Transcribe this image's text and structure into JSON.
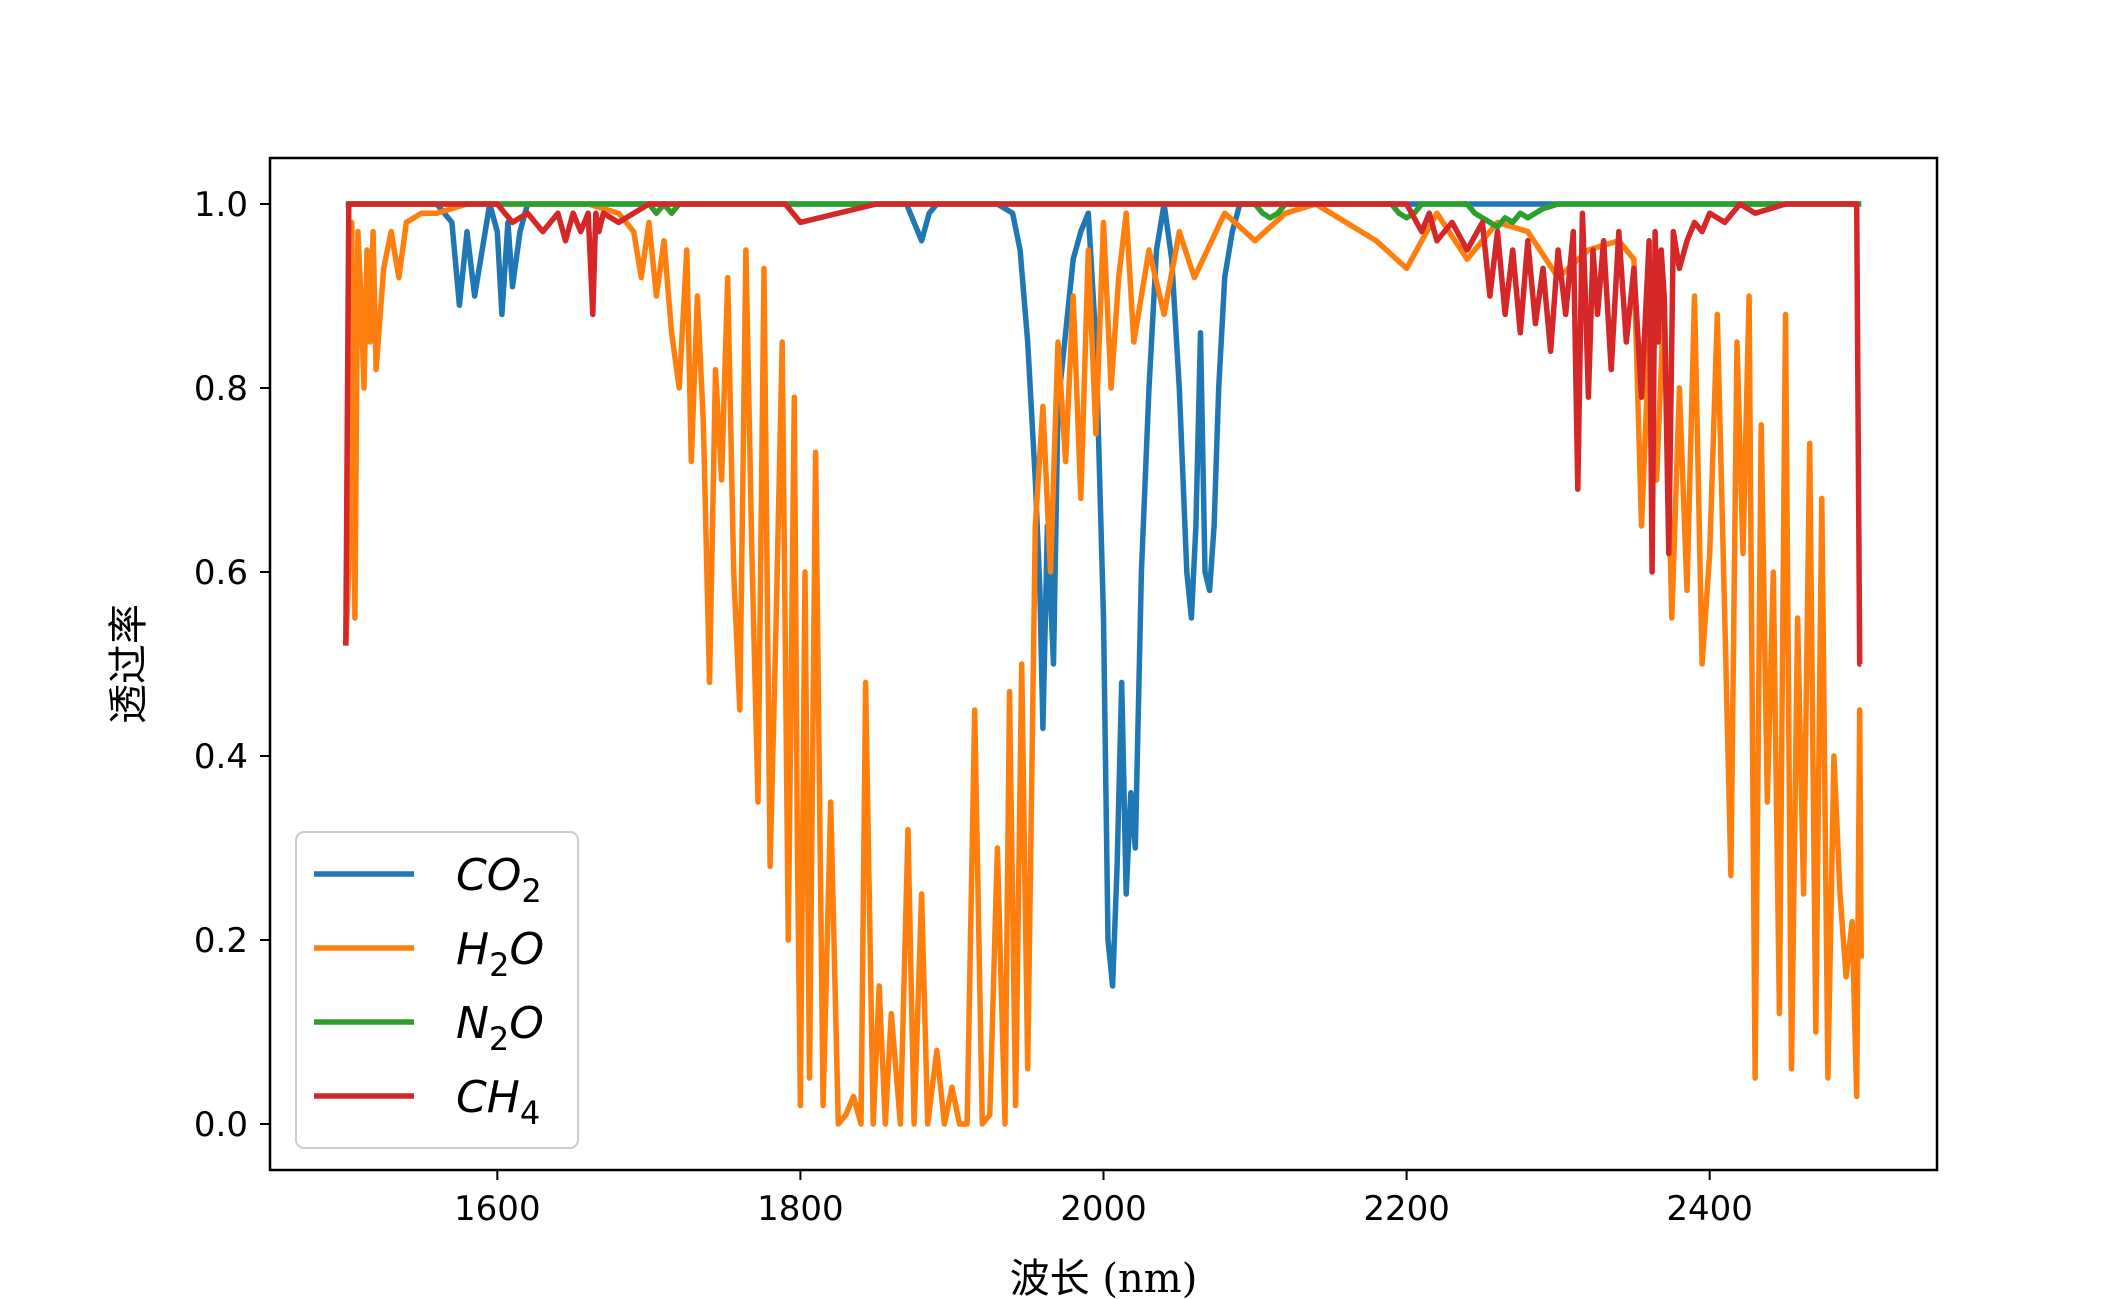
{
  "chart_data": {
    "type": "line",
    "title": "",
    "xlabel": "波长 (nm)",
    "ylabel": "透过率",
    "xlim": [
      1450,
      2550
    ],
    "ylim": [
      -0.05,
      1.05
    ],
    "xticks": [
      {
        "value": 1600,
        "label": "1600"
      },
      {
        "value": 1800,
        "label": "1800"
      },
      {
        "value": 2000,
        "label": "2000"
      },
      {
        "value": 2200,
        "label": "2200"
      },
      {
        "value": 2400,
        "label": "2400"
      }
    ],
    "yticks": [
      {
        "value": 0.0,
        "label": "0.0"
      },
      {
        "value": 0.2,
        "label": "0.2"
      },
      {
        "value": 0.4,
        "label": "0.4"
      },
      {
        "value": 0.6,
        "label": "0.6"
      },
      {
        "value": 0.8,
        "label": "0.8"
      },
      {
        "value": 1.0,
        "label": "1.0"
      }
    ],
    "grid": false,
    "legend_position": "lower-left",
    "series": [
      {
        "name": "CO2",
        "label_main": "CO",
        "label_sub": "2",
        "color": "#1f77b4",
        "x": [
          1500,
          1560,
          1570,
          1575,
          1580,
          1585,
          1590,
          1595,
          1600,
          1603,
          1607,
          1610,
          1615,
          1620,
          1625,
          1700,
          1870,
          1875,
          1880,
          1885,
          1890,
          1930,
          1940,
          1945,
          1950,
          1955,
          1958,
          1960,
          1963,
          1967,
          1970,
          1975,
          1980,
          1985,
          1990,
          1995,
          2000,
          2003,
          2006,
          2009,
          2012,
          2015,
          2018,
          2021,
          2025,
          2030,
          2035,
          2040,
          2045,
          2050,
          2055,
          2058,
          2061,
          2064,
          2067,
          2070,
          2073,
          2076,
          2080,
          2085,
          2090,
          2100,
          2300,
          2500
        ],
        "y": [
          1.0,
          1.0,
          0.98,
          0.89,
          0.97,
          0.9,
          0.95,
          1.0,
          0.97,
          0.88,
          0.98,
          0.91,
          0.97,
          1.0,
          1.0,
          1.0,
          1.0,
          0.98,
          0.96,
          0.99,
          1.0,
          1.0,
          0.99,
          0.95,
          0.85,
          0.7,
          0.58,
          0.43,
          0.65,
          0.5,
          0.78,
          0.86,
          0.94,
          0.97,
          0.99,
          0.85,
          0.55,
          0.2,
          0.15,
          0.28,
          0.48,
          0.25,
          0.36,
          0.3,
          0.6,
          0.8,
          0.95,
          1.0,
          0.94,
          0.8,
          0.6,
          0.55,
          0.65,
          0.86,
          0.6,
          0.58,
          0.65,
          0.8,
          0.92,
          0.97,
          1.0,
          1.0,
          1.0,
          1.0
        ]
      },
      {
        "name": "H2O",
        "label_main": "H",
        "label_sub": "2",
        "label_tail": "O",
        "color": "#ff7f0e",
        "x": [
          1500,
          1502,
          1504,
          1506,
          1508,
          1510,
          1512,
          1514,
          1516,
          1518,
          1520,
          1525,
          1530,
          1535,
          1540,
          1550,
          1560,
          1580,
          1600,
          1620,
          1640,
          1660,
          1680,
          1690,
          1695,
          1700,
          1705,
          1710,
          1715,
          1720,
          1725,
          1728,
          1732,
          1736,
          1740,
          1744,
          1748,
          1752,
          1756,
          1760,
          1764,
          1768,
          1772,
          1776,
          1780,
          1784,
          1788,
          1792,
          1796,
          1798,
          1800,
          1803,
          1806,
          1810,
          1815,
          1820,
          1825,
          1830,
          1835,
          1840,
          1843,
          1848,
          1852,
          1856,
          1860,
          1866,
          1871,
          1875,
          1880,
          1884,
          1890,
          1895,
          1900,
          1905,
          1910,
          1915,
          1920,
          1925,
          1930,
          1935,
          1938,
          1942,
          1946,
          1950,
          1955,
          1960,
          1965,
          1970,
          1975,
          1980,
          1985,
          1990,
          1995,
          2000,
          2005,
          2010,
          2015,
          2020,
          2030,
          2040,
          2050,
          2060,
          2080,
          2100,
          2120,
          2140,
          2160,
          2180,
          2200,
          2220,
          2240,
          2260,
          2280,
          2300,
          2320,
          2340,
          2350,
          2355,
          2360,
          2365,
          2370,
          2375,
          2380,
          2385,
          2390,
          2395,
          2400,
          2405,
          2410,
          2414,
          2418,
          2422,
          2426,
          2430,
          2434,
          2438,
          2442,
          2446,
          2450,
          2454,
          2458,
          2462,
          2466,
          2470,
          2474,
          2478,
          2482,
          2486,
          2490,
          2494,
          2497,
          2499,
          2500
        ],
        "y": [
          0.52,
          0.6,
          0.98,
          0.55,
          0.97,
          0.9,
          0.8,
          0.95,
          0.85,
          0.97,
          0.82,
          0.93,
          0.97,
          0.92,
          0.98,
          0.99,
          0.99,
          1.0,
          1.0,
          1.0,
          1.0,
          1.0,
          0.99,
          0.97,
          0.92,
          0.98,
          0.9,
          0.96,
          0.86,
          0.8,
          0.95,
          0.72,
          0.9,
          0.76,
          0.48,
          0.82,
          0.7,
          0.92,
          0.6,
          0.45,
          0.95,
          0.62,
          0.35,
          0.93,
          0.28,
          0.55,
          0.85,
          0.2,
          0.79,
          0.3,
          0.02,
          0.6,
          0.05,
          0.73,
          0.02,
          0.35,
          0.0,
          0.01,
          0.03,
          0.0,
          0.48,
          0.0,
          0.15,
          0.0,
          0.12,
          0.0,
          0.32,
          0.0,
          0.25,
          0.0,
          0.08,
          0.0,
          0.04,
          0.0,
          0.0,
          0.45,
          0.0,
          0.01,
          0.3,
          0.0,
          0.47,
          0.02,
          0.5,
          0.06,
          0.65,
          0.78,
          0.6,
          0.85,
          0.72,
          0.9,
          0.68,
          0.95,
          0.75,
          0.98,
          0.8,
          0.92,
          0.99,
          0.85,
          0.95,
          0.88,
          0.97,
          0.92,
          0.99,
          0.96,
          0.99,
          1.0,
          0.98,
          0.96,
          0.93,
          0.99,
          0.94,
          0.98,
          0.97,
          0.92,
          0.95,
          0.96,
          0.94,
          0.65,
          0.85,
          0.7,
          0.9,
          0.55,
          0.8,
          0.58,
          0.9,
          0.5,
          0.62,
          0.88,
          0.55,
          0.27,
          0.85,
          0.62,
          0.9,
          0.05,
          0.76,
          0.35,
          0.6,
          0.12,
          0.88,
          0.06,
          0.55,
          0.25,
          0.74,
          0.1,
          0.68,
          0.05,
          0.4,
          0.25,
          0.16,
          0.22,
          0.03,
          0.45,
          0.18
        ]
      },
      {
        "name": "N2O",
        "label_main": "N",
        "label_sub": "2",
        "label_tail": "O",
        "color": "#2ca02c",
        "x": [
          1500,
          1700,
          1705,
          1710,
          1715,
          1720,
          2100,
          2105,
          2110,
          2115,
          2120,
          2190,
          2195,
          2200,
          2205,
          2210,
          2240,
          2245,
          2250,
          2255,
          2260,
          2265,
          2270,
          2275,
          2280,
          2285,
          2290,
          2300,
          2500
        ],
        "y": [
          1.0,
          1.0,
          0.99,
          1.0,
          0.99,
          1.0,
          1.0,
          0.99,
          0.985,
          0.99,
          1.0,
          1.0,
          0.99,
          0.985,
          0.99,
          1.0,
          1.0,
          0.99,
          0.985,
          0.98,
          0.975,
          0.985,
          0.98,
          0.99,
          0.985,
          0.99,
          0.995,
          1.0,
          1.0
        ]
      },
      {
        "name": "CH4",
        "label_main": "CH",
        "label_sub": "4",
        "color": "#d62728",
        "x": [
          1500,
          1502,
          1520,
          1600,
          1610,
          1620,
          1630,
          1640,
          1645,
          1650,
          1655,
          1660,
          1663,
          1665,
          1667,
          1670,
          1680,
          1690,
          1700,
          1750,
          1790,
          1800,
          1850,
          2100,
          2200,
          2210,
          2215,
          2220,
          2230,
          2240,
          2250,
          2255,
          2260,
          2265,
          2270,
          2275,
          2280,
          2285,
          2290,
          2295,
          2300,
          2305,
          2310,
          2313,
          2316,
          2318,
          2320,
          2323,
          2326,
          2330,
          2335,
          2340,
          2345,
          2350,
          2355,
          2360,
          2362,
          2364,
          2366,
          2368,
          2370,
          2373,
          2376,
          2380,
          2385,
          2390,
          2395,
          2400,
          2410,
          2420,
          2430,
          2450,
          2497,
          2499,
          2500
        ],
        "y": [
          0.52,
          1.0,
          1.0,
          1.0,
          0.98,
          0.99,
          0.97,
          0.99,
          0.96,
          0.99,
          0.97,
          0.99,
          0.88,
          0.99,
          0.97,
          0.99,
          0.98,
          0.99,
          1.0,
          1.0,
          1.0,
          0.98,
          1.0,
          1.0,
          1.0,
          0.97,
          0.99,
          0.96,
          0.98,
          0.95,
          0.98,
          0.9,
          0.97,
          0.88,
          0.95,
          0.86,
          0.96,
          0.87,
          0.93,
          0.84,
          0.95,
          0.88,
          0.97,
          0.69,
          0.99,
          0.9,
          0.79,
          0.95,
          0.88,
          0.96,
          0.82,
          0.97,
          0.85,
          0.93,
          0.79,
          0.96,
          0.6,
          0.97,
          0.85,
          0.95,
          0.9,
          0.62,
          0.97,
          0.93,
          0.96,
          0.98,
          0.97,
          0.99,
          0.98,
          1.0,
          0.99,
          1.0,
          1.0,
          0.5,
          0.5
        ]
      }
    ]
  }
}
